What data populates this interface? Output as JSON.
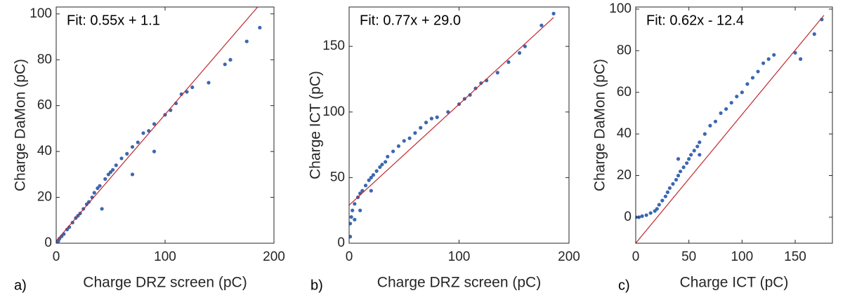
{
  "chart_data": [
    {
      "type": "scatter",
      "label": "a)",
      "annotation": "Fit: 0.55x + 1.1",
      "x_label": "Charge DRZ screen (pC)",
      "y_label": "Charge DaMon (pC)",
      "xlim": [
        0,
        200
      ],
      "ylim": [
        0,
        103
      ],
      "xticks": [
        0,
        100,
        200
      ],
      "yticks": [
        0,
        20,
        40,
        60,
        80,
        100
      ],
      "series": [
        {
          "color": "#3b67b1",
          "x": [
            1,
            2,
            3,
            5,
            7,
            10,
            12,
            15,
            18,
            20,
            22,
            25,
            28,
            30,
            33,
            35,
            38,
            40,
            45,
            48,
            50,
            52,
            55,
            60,
            65,
            70,
            75,
            80,
            85,
            90,
            100,
            105,
            110,
            115,
            120,
            125,
            140,
            155,
            160,
            175,
            187,
            42,
            90,
            70
          ],
          "values": [
            0.5,
            1,
            2,
            3,
            4,
            6,
            7,
            9,
            11,
            12,
            13,
            15,
            17,
            18,
            20,
            22,
            24,
            25,
            28,
            30,
            31,
            32,
            34,
            37,
            39,
            42,
            44,
            48,
            49,
            52,
            56,
            58,
            61,
            65,
            66,
            68,
            70,
            78,
            80,
            88,
            94,
            15,
            40,
            30
          ]
        },
        {
          "type": "line",
          "color": "#c0282d",
          "x": [
            0,
            185
          ],
          "values": [
            1,
            103
          ]
        }
      ]
    },
    {
      "type": "scatter",
      "label": "b)",
      "annotation": "Fit: 0.77x + 29.0",
      "x_label": "Charge DRZ screen (pC)",
      "y_label": "Charge ICT (pC)",
      "xlim": [
        0,
        200
      ],
      "ylim": [
        0,
        180
      ],
      "xticks": [
        0,
        100,
        200
      ],
      "yticks": [
        0,
        50,
        100,
        150
      ],
      "series": [
        {
          "color": "#3b67b1",
          "x": [
            1,
            1,
            2,
            3,
            5,
            5,
            8,
            10,
            12,
            15,
            18,
            20,
            22,
            25,
            28,
            30,
            33,
            35,
            40,
            45,
            50,
            55,
            60,
            65,
            70,
            75,
            80,
            90,
            100,
            105,
            110,
            115,
            120,
            125,
            135,
            145,
            155,
            160,
            175,
            186,
            10,
            20
          ],
          "values": [
            5,
            15,
            20,
            25,
            30,
            18,
            35,
            38,
            40,
            44,
            48,
            50,
            52,
            55,
            58,
            60,
            62,
            66,
            70,
            74,
            78,
            80,
            84,
            88,
            92,
            95,
            96,
            100,
            106,
            110,
            113,
            118,
            122,
            124,
            130,
            138,
            145,
            150,
            166,
            175,
            25,
            40
          ]
        },
        {
          "type": "line",
          "color": "#c0282d",
          "x": [
            0,
            186
          ],
          "values": [
            29,
            172
          ]
        }
      ]
    },
    {
      "type": "scatter",
      "label": "c)",
      "annotation": "Fit: 0.62x - 12.4",
      "x_label": "Charge ICT (pC)",
      "y_label": "Charge DaMon (pC)",
      "xlim": [
        0,
        185
      ],
      "ylim": [
        -12.5,
        101
      ],
      "xticks": [
        0,
        50,
        100,
        150
      ],
      "yticks": [
        0,
        20,
        40,
        60,
        80,
        100
      ],
      "series": [
        {
          "color": "#3b67b1",
          "x": [
            0,
            3,
            6,
            10,
            14,
            18,
            20,
            22,
            25,
            28,
            30,
            32,
            35,
            38,
            40,
            42,
            45,
            48,
            50,
            52,
            55,
            58,
            60,
            65,
            70,
            75,
            80,
            85,
            90,
            95,
            100,
            105,
            110,
            115,
            120,
            125,
            130,
            150,
            155,
            168,
            175,
            40,
            60
          ],
          "values": [
            0,
            0,
            0.5,
            1,
            2,
            3,
            4,
            6,
            8,
            10,
            12,
            14,
            16,
            18,
            20,
            22,
            24,
            26,
            28,
            30,
            32,
            34,
            36,
            40,
            44,
            46,
            50,
            52,
            55,
            58,
            60,
            64,
            67,
            70,
            74,
            76,
            78,
            79,
            76,
            88,
            95,
            28,
            30
          ]
        },
        {
          "type": "line",
          "color": "#c0282d",
          "x": [
            0,
            177
          ],
          "values": [
            -12.5,
            97
          ]
        }
      ]
    }
  ]
}
